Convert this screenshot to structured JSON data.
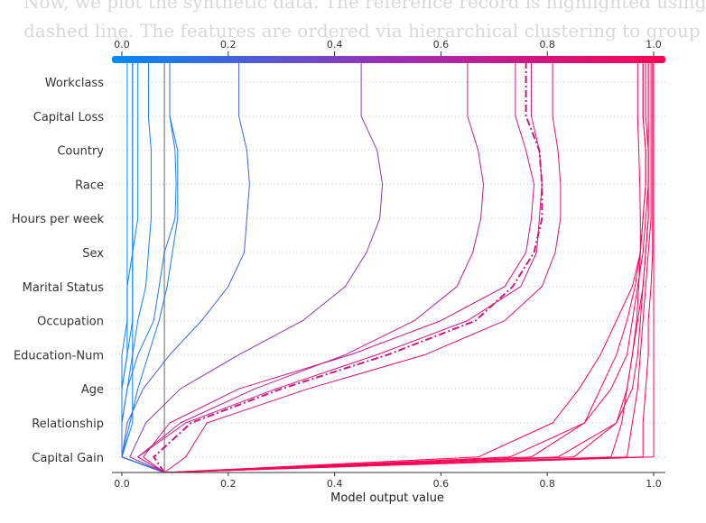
{
  "background_text": {
    "line1": "Now, we plot the synthetic data. The reference record is highlighted using a",
    "line2": "dashed line. The features are ordered via hierarchical clustering to group"
  },
  "chart_data": {
    "type": "line",
    "subtype": "decision-plot",
    "title": "",
    "xlabel": "Model output value",
    "ylabel": "",
    "xlim": [
      0.0,
      1.0
    ],
    "xticks": [
      "0.0",
      "0.2",
      "0.4",
      "0.6",
      "0.8",
      "1.0"
    ],
    "features": [
      "Workclass",
      "Capital Loss",
      "Country",
      "Race",
      "Hours per week",
      "Sex",
      "Marital Status",
      "Occupation",
      "Education-Num",
      "Age",
      "Relationship",
      "Capital Gain"
    ],
    "base_value": 0.08,
    "colormap": {
      "low": "#008bfb",
      "mid": "#9b2fb5",
      "high": "#ff0052"
    },
    "grid": true,
    "highlighted_series_index": 13,
    "series": [
      {
        "values": [
          0.02,
          0.02,
          0.02,
          0.02,
          0.02,
          0.02,
          0.02,
          0.02,
          0.02,
          0.02,
          0.0,
          0.08
        ]
      },
      {
        "values": [
          0.02,
          0.02,
          0.02,
          0.02,
          0.02,
          0.01,
          0.01,
          0.01,
          0.0,
          0.0,
          0.0,
          0.08
        ]
      },
      {
        "values": [
          0.01,
          0.01,
          0.01,
          0.01,
          0.01,
          0.01,
          0.01,
          0.0,
          0.0,
          0.0,
          0.0,
          0.08
        ]
      },
      {
        "values": [
          0.03,
          0.03,
          0.03,
          0.03,
          0.02,
          0.02,
          0.02,
          0.01,
          0.0,
          0.0,
          0.0,
          0.08
        ]
      },
      {
        "values": [
          0.05,
          0.055,
          0.055,
          0.055,
          0.05,
          0.045,
          0.03,
          0.02,
          0.01,
          0.0,
          0.0,
          0.08
        ]
      },
      {
        "values": [
          0.09,
          0.1,
          0.102,
          0.1,
          0.08,
          0.07,
          0.06,
          0.03,
          0.01,
          0.0,
          0.0,
          0.08
        ]
      },
      {
        "values": [
          0.09,
          0.105,
          0.105,
          0.105,
          0.095,
          0.085,
          0.07,
          0.05,
          0.03,
          0.015,
          0.0,
          0.08
        ]
      },
      {
        "values": [
          0.22,
          0.235,
          0.24,
          0.235,
          0.23,
          0.2,
          0.15,
          0.09,
          0.04,
          0.01,
          0.0,
          0.08
        ]
      },
      {
        "values": [
          0.45,
          0.48,
          0.49,
          0.485,
          0.46,
          0.42,
          0.34,
          0.22,
          0.11,
          0.045,
          0.015,
          0.08
        ]
      },
      {
        "values": [
          0.65,
          0.67,
          0.68,
          0.675,
          0.66,
          0.63,
          0.55,
          0.42,
          0.25,
          0.11,
          0.03,
          0.08
        ]
      },
      {
        "values": [
          0.74,
          0.76,
          0.775,
          0.77,
          0.76,
          0.72,
          0.6,
          0.43,
          0.22,
          0.09,
          0.04,
          0.08
        ]
      },
      {
        "values": [
          0.77,
          0.785,
          0.79,
          0.785,
          0.78,
          0.75,
          0.65,
          0.48,
          0.29,
          0.12,
          0.03,
          0.08
        ]
      },
      {
        "values": [
          0.81,
          0.82,
          0.825,
          0.825,
          0.815,
          0.79,
          0.72,
          0.57,
          0.35,
          0.16,
          0.12,
          0.08
        ]
      },
      {
        "values": [
          0.76,
          0.785,
          0.79,
          0.79,
          0.775,
          0.735,
          0.665,
          0.5,
          0.3,
          0.13,
          0.06,
          0.08
        ]
      },
      {
        "values": [
          0.98,
          0.985,
          0.985,
          0.98,
          0.975,
          0.96,
          0.93,
          0.9,
          0.86,
          0.81,
          0.67,
          0.08
        ]
      },
      {
        "values": [
          0.98,
          0.985,
          0.985,
          0.98,
          0.975,
          0.965,
          0.95,
          0.93,
          0.9,
          0.87,
          0.73,
          0.08
        ]
      },
      {
        "values": [
          0.985,
          0.99,
          0.99,
          0.985,
          0.98,
          0.97,
          0.96,
          0.95,
          0.92,
          0.87,
          0.77,
          0.08
        ]
      },
      {
        "values": [
          0.99,
          0.99,
          0.99,
          0.99,
          0.985,
          0.98,
          0.97,
          0.96,
          0.95,
          0.94,
          0.92,
          0.08
        ]
      },
      {
        "values": [
          0.99,
          0.99,
          0.99,
          0.99,
          0.985,
          0.98,
          0.975,
          0.97,
          0.96,
          0.93,
          0.85,
          0.08
        ]
      },
      {
        "values": [
          0.995,
          0.995,
          0.995,
          0.995,
          0.99,
          0.985,
          0.98,
          0.975,
          0.97,
          0.96,
          0.95,
          0.08
        ]
      },
      {
        "values": [
          0.998,
          0.998,
          0.998,
          0.998,
          0.998,
          0.995,
          0.99,
          0.99,
          0.985,
          0.98,
          0.98,
          0.08
        ]
      },
      {
        "values": [
          1.0,
          1.0,
          1.0,
          1.0,
          1.0,
          1.0,
          1.0,
          1.0,
          1.0,
          1.0,
          1.0,
          0.08
        ]
      },
      {
        "values": [
          0.97,
          0.972,
          0.974,
          0.975,
          0.975,
          0.972,
          0.968,
          0.96,
          0.95,
          0.93,
          0.82,
          0.08
        ]
      }
    ]
  }
}
